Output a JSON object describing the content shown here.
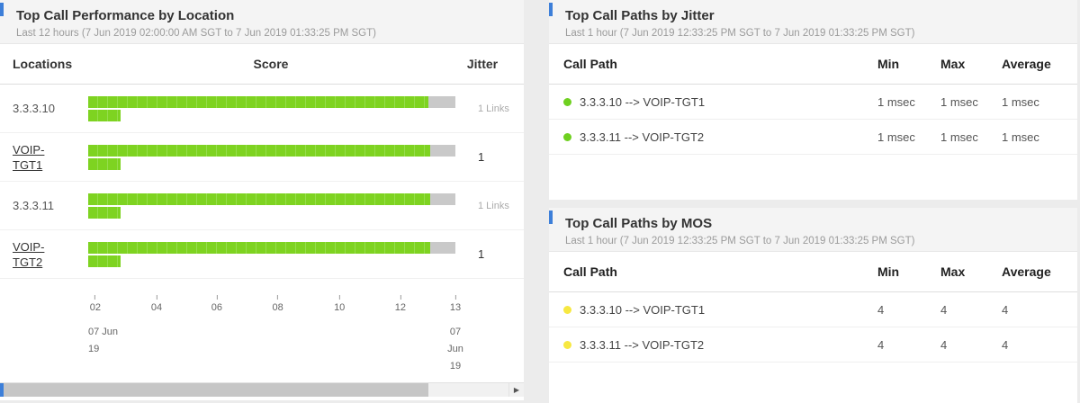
{
  "theme": {
    "accent": "#3d7fd9",
    "bar_green": "#7ed321",
    "bar_tail_gray": "#c9c9c9",
    "jitter_dot": "#6fd020",
    "mos_dot": "#f7e841"
  },
  "performance": {
    "title": "Top Call Performance by Location",
    "subtitle": "Last 12 hours (7 Jun 2019 02:00:00 AM SGT to 7 Jun 2019 01:33:25 PM SGT)",
    "columns": {
      "locations": "Locations",
      "score": "Score",
      "jitter": "Jitter"
    },
    "rows": [
      {
        "location": "3.3.3.10",
        "jitter": "1 Links",
        "score_pct": "91.5%",
        "tail_pct": "7.3%",
        "sub_pct": "8.8%"
      },
      {
        "location": "VOIP-TGT1",
        "jitter": "1",
        "score_pct": "92%",
        "tail_pct": "6.8%",
        "sub_pct": "8.8%"
      },
      {
        "location": "3.3.3.11",
        "jitter": "1 Links",
        "score_pct": "92%",
        "tail_pct": "6.8%",
        "sub_pct": "8.8%"
      },
      {
        "location": "VOIP-TGT2",
        "jitter": "1",
        "score_pct": "92%",
        "tail_pct": "6.8%",
        "sub_pct": "8.8%"
      }
    ],
    "axis": {
      "ticks": [
        {
          "label": "02",
          "pos": "1.9%"
        },
        {
          "label": "04",
          "pos": "18.4%"
        },
        {
          "label": "06",
          "pos": "34.6%"
        },
        {
          "label": "08",
          "pos": "51%"
        },
        {
          "label": "10",
          "pos": "67.6%"
        },
        {
          "label": "12",
          "pos": "84%"
        },
        {
          "label": "13",
          "pos": "98.8%"
        }
      ],
      "start_date_line1": "07 Jun",
      "start_date_line2": "19",
      "end_date_line1": "07 Jun",
      "end_date_line2": "19"
    },
    "scrollbar": {
      "right_arrow": "▶"
    }
  },
  "jitter_panel": {
    "title": "Top Call Paths by Jitter",
    "subtitle": "Last 1 hour (7 Jun 2019 12:33:25 PM SGT to 7 Jun 2019 01:33:25 PM SGT)",
    "columns": {
      "path": "Call Path",
      "min": "Min",
      "max": "Max",
      "avg": "Average"
    },
    "rows": [
      {
        "path": "3.3.3.10 --> VOIP-TGT1",
        "min": "1 msec",
        "max": "1 msec",
        "avg": "1 msec"
      },
      {
        "path": "3.3.3.11 --> VOIP-TGT2",
        "min": "1 msec",
        "max": "1 msec",
        "avg": "1 msec"
      }
    ]
  },
  "mos_panel": {
    "title": "Top Call Paths by MOS",
    "subtitle": "Last 1 hour (7 Jun 2019 12:33:25 PM SGT to 7 Jun 2019 01:33:25 PM SGT)",
    "columns": {
      "path": "Call Path",
      "min": "Min",
      "max": "Max",
      "avg": "Average"
    },
    "rows": [
      {
        "path": "3.3.3.10 --> VOIP-TGT1",
        "min": "4",
        "max": "4",
        "avg": "4"
      },
      {
        "path": "3.3.3.11 --> VOIP-TGT2",
        "min": "4",
        "max": "4",
        "avg": "4"
      }
    ]
  }
}
